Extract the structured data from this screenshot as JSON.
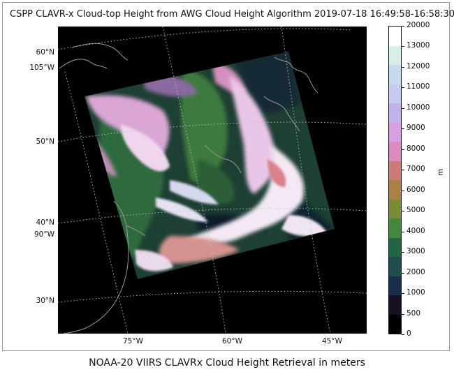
{
  "title": "CSPP CLAVR-x Cloud-top Height from AWG Cloud Height Algorithm 2019-07-18 16:49:58-16:58:30",
  "caption": "NOAA-20 VIIRS CLAVRx Cloud Height Retrieval in meters",
  "map": {
    "lat_labels": [
      "60°N",
      "50°N",
      "40°N",
      "30°N"
    ],
    "lon_labels_left": [
      "105°W",
      "90°W"
    ],
    "lon_labels_bottom": [
      "75°W",
      "60°W",
      "45°W"
    ],
    "background_color": "#000000",
    "coastline_color": "#9a9a9a",
    "gridline_color": "#bdbdbd"
  },
  "colorbar": {
    "unit": "m",
    "labels": [
      "20000",
      "13000",
      "12000",
      "11000",
      "10000",
      "9000",
      "8000",
      "7000",
      "6000",
      "5000",
      "4000",
      "3000",
      "2000",
      "1000",
      "500",
      "0"
    ],
    "colors": [
      "#ffffff",
      "#d8eee9",
      "#c4dbed",
      "#c5cbf0",
      "#c1b2ec",
      "#d7a1e1",
      "#dc8bbe",
      "#cc7b78",
      "#a98046",
      "#788c35",
      "#44873e",
      "#236445",
      "#1d4d4c",
      "#1b2d4c",
      "#180f20",
      "#000000"
    ]
  }
}
